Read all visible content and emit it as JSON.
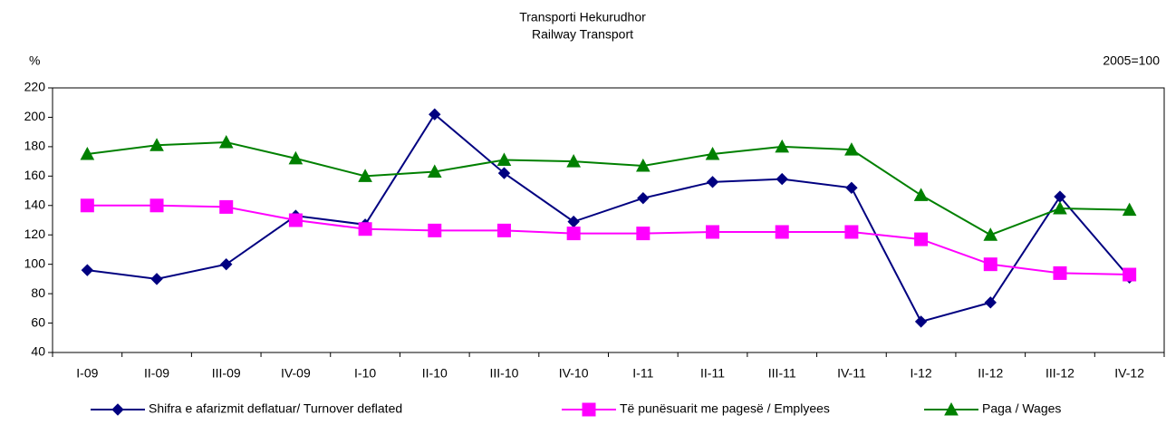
{
  "chart_data": {
    "type": "line",
    "title": "Transporti Hekurudhor",
    "subtitle": "Railway Transport",
    "y_label": "%",
    "annotation": "2005=100",
    "categories": [
      "I-09",
      "II-09",
      "III-09",
      "IV-09",
      "I-10",
      "II-10",
      "III-10",
      "IV-10",
      "I-11",
      "II-11",
      "III-11",
      "IV-11",
      "I-12",
      "II-12",
      "III-12",
      "IV-12"
    ],
    "series": [
      {
        "name": "Shifra e afarizmit deflatuar/ Turnover deflated",
        "color": "#000080",
        "marker": "diamond",
        "values": [
          96,
          90,
          100,
          133,
          127,
          202,
          162,
          129,
          145,
          156,
          158,
          152,
          61,
          74,
          146,
          91
        ]
      },
      {
        "name": "Të punësuarit me pagesë / Emplyees",
        "color": "#ff00ff",
        "marker": "square",
        "values": [
          140,
          140,
          139,
          130,
          124,
          123,
          123,
          121,
          121,
          122,
          122,
          122,
          117,
          100,
          94,
          93
        ]
      },
      {
        "name": "Paga / Wages",
        "color": "#008000",
        "marker": "triangle",
        "values": [
          175,
          181,
          183,
          172,
          160,
          163,
          171,
          170,
          167,
          175,
          180,
          178,
          147,
          120,
          138,
          137
        ]
      }
    ],
    "ylim": [
      40,
      220
    ],
    "yticks": [
      40,
      60,
      80,
      100,
      120,
      140,
      160,
      180,
      200,
      220
    ],
    "grid": false,
    "legend": "bottom"
  }
}
